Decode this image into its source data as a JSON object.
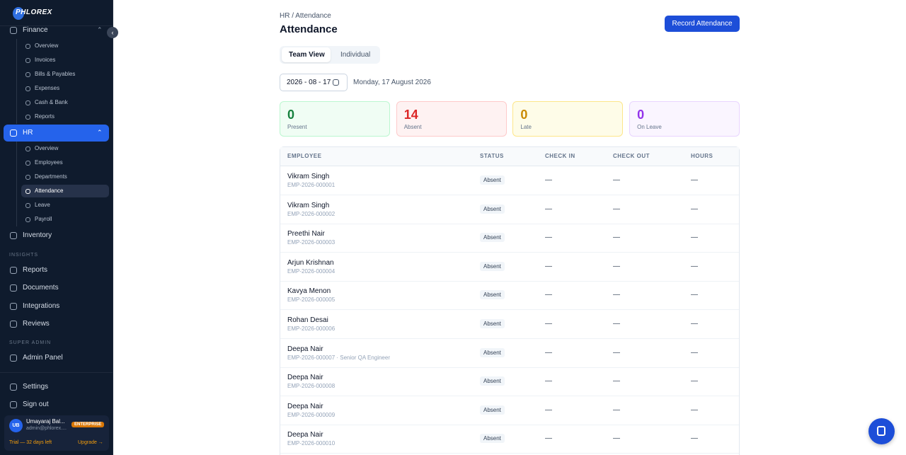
{
  "sidebar": {
    "brand": "PHLOREX",
    "finance": {
      "label": "Finance",
      "items": [
        "Overview",
        "Invoices",
        "Bills & Payables",
        "Expenses",
        "Cash & Bank",
        "Reports"
      ]
    },
    "hr": {
      "label": "HR",
      "items": [
        "Overview",
        "Employees",
        "Departments",
        "Attendance",
        "Leave",
        "Payroll"
      ]
    },
    "inventory": "Inventory",
    "insights": {
      "heading": "INSIGHTS",
      "items": [
        "Reports",
        "Documents",
        "Integrations",
        "Reviews"
      ]
    },
    "super_admin": {
      "heading": "SUPER ADMIN",
      "items": [
        "Admin Panel"
      ]
    },
    "footer_items": [
      "Settings",
      "Sign out"
    ],
    "user": {
      "initials": "UB",
      "name": "Umayaraj Bal...",
      "email": "admin@phlorex....",
      "plan": "ENTERPRISE",
      "trial": "Trial — 32 days left",
      "upgrade": "Upgrade →"
    }
  },
  "header": {
    "breadcrumb": "HR / Attendance",
    "title": "Attendance",
    "action": "Record Attendance"
  },
  "tabs": [
    "Team View",
    "Individual"
  ],
  "date": {
    "input": "2026 - 08 - 17",
    "label": "Monday, 17 August 2026"
  },
  "stats": [
    {
      "value": "0",
      "label": "Present"
    },
    {
      "value": "14",
      "label": "Absent"
    },
    {
      "value": "0",
      "label": "Late"
    },
    {
      "value": "0",
      "label": "On Leave"
    }
  ],
  "table": {
    "columns": [
      "EMPLOYEE",
      "STATUS",
      "CHECK IN",
      "CHECK OUT",
      "HOURS"
    ],
    "rows": [
      {
        "name": "Vikram Singh",
        "id": "EMP-2026-000001",
        "status": "Absent",
        "check_in": "—",
        "check_out": "—",
        "hours": "—"
      },
      {
        "name": "Vikram Singh",
        "id": "EMP-2026-000002",
        "status": "Absent",
        "check_in": "—",
        "check_out": "—",
        "hours": "—"
      },
      {
        "name": "Preethi Nair",
        "id": "EMP-2026-000003",
        "status": "Absent",
        "check_in": "—",
        "check_out": "—",
        "hours": "—"
      },
      {
        "name": "Arjun Krishnan",
        "id": "EMP-2026-000004",
        "status": "Absent",
        "check_in": "—",
        "check_out": "—",
        "hours": "—"
      },
      {
        "name": "Kavya Menon",
        "id": "EMP-2026-000005",
        "status": "Absent",
        "check_in": "—",
        "check_out": "—",
        "hours": "—"
      },
      {
        "name": "Rohan Desai",
        "id": "EMP-2026-000006",
        "status": "Absent",
        "check_in": "—",
        "check_out": "—",
        "hours": "—"
      },
      {
        "name": "Deepa Nair",
        "id": "EMP-2026-000007 · Senior QA Engineer",
        "status": "Absent",
        "check_in": "—",
        "check_out": "—",
        "hours": "—"
      },
      {
        "name": "Deepa Nair",
        "id": "EMP-2026-000008",
        "status": "Absent",
        "check_in": "—",
        "check_out": "—",
        "hours": "—"
      },
      {
        "name": "Deepa Nair",
        "id": "EMP-2026-000009",
        "status": "Absent",
        "check_in": "—",
        "check_out": "—",
        "hours": "—"
      },
      {
        "name": "Deepa Nair",
        "id": "EMP-2026-000010",
        "status": "Absent",
        "check_in": "—",
        "check_out": "—",
        "hours": "—"
      }
    ]
  }
}
